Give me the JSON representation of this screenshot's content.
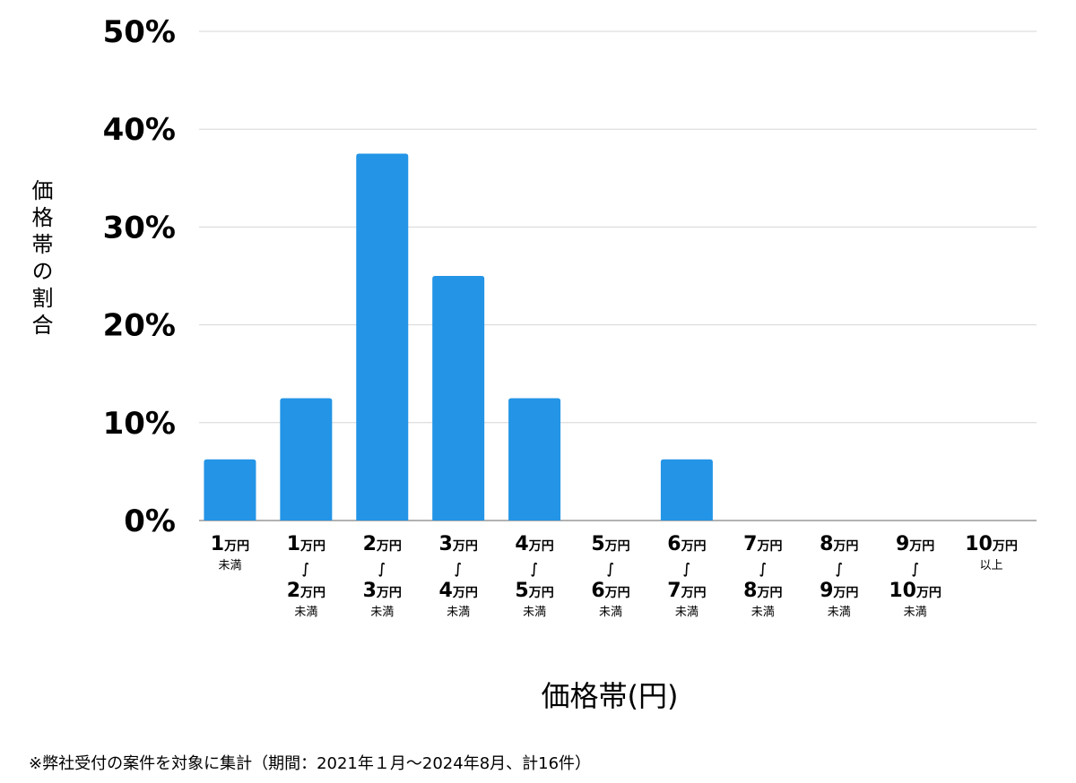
{
  "chart_data": {
    "type": "bar",
    "ylabel": "価格帯の割合",
    "xlabel": "価格帯(円)",
    "ylim": [
      0,
      50
    ],
    "yticks": [
      "0%",
      "10%",
      "20%",
      "30%",
      "40%",
      "50%"
    ],
    "grid": true,
    "bar_color": "#2394e6",
    "categories": [
      {
        "from": "1万円",
        "to": "",
        "suffix": "未満"
      },
      {
        "from": "1万円",
        "to": "2万円",
        "suffix": "未満"
      },
      {
        "from": "2万円",
        "to": "3万円",
        "suffix": "未満"
      },
      {
        "from": "3万円",
        "to": "4万円",
        "suffix": "未満"
      },
      {
        "from": "4万円",
        "to": "5万円",
        "suffix": "未満"
      },
      {
        "from": "5万円",
        "to": "6万円",
        "suffix": "未満"
      },
      {
        "from": "6万円",
        "to": "7万円",
        "suffix": "未満"
      },
      {
        "from": "7万円",
        "to": "8万円",
        "suffix": "未満"
      },
      {
        "from": "8万円",
        "to": "9万円",
        "suffix": "未満"
      },
      {
        "from": "9万円",
        "to": "10万円",
        "suffix": "未満"
      },
      {
        "from": "10万円",
        "to": "",
        "suffix": "以上"
      }
    ],
    "values": [
      6.25,
      12.5,
      37.5,
      25,
      12.5,
      0,
      6.25,
      0,
      0,
      0,
      0
    ]
  },
  "footnote": "※弊社受付の案件を対象に集計（期間：2021年１月～2024年8月、計16件）"
}
